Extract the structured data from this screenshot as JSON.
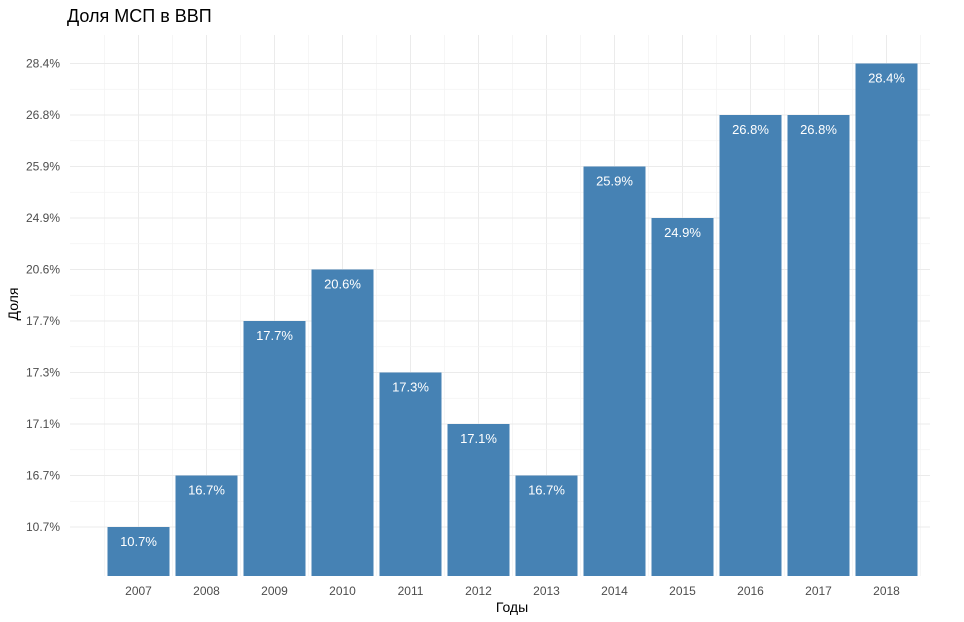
{
  "chart_data": {
    "type": "bar",
    "title": "Доля МСП в ВВП",
    "xlabel": "Годы",
    "ylabel": "Доля",
    "categories": [
      "2007",
      "2008",
      "2009",
      "2010",
      "2011",
      "2012",
      "2013",
      "2014",
      "2015",
      "2016",
      "2017",
      "2018"
    ],
    "values": [
      10.7,
      16.7,
      17.7,
      20.6,
      17.3,
      17.1,
      16.7,
      25.9,
      24.9,
      26.8,
      26.8,
      28.4
    ],
    "data_labels": [
      "10.7%",
      "16.7%",
      "17.7%",
      "20.6%",
      "17.3%",
      "17.1%",
      "16.7%",
      "25.9%",
      "24.9%",
      "26.8%",
      "26.8%",
      "28.4%"
    ],
    "y_axis_type": "categorical (sorted by value)",
    "y_tick_labels": [
      "10.7%",
      "16.7%",
      "17.1%",
      "17.3%",
      "17.7%",
      "20.6%",
      "24.9%",
      "25.9%",
      "26.8%",
      "28.4%"
    ],
    "bar_color": "#4682b4",
    "grid": true,
    "legend": "none"
  }
}
